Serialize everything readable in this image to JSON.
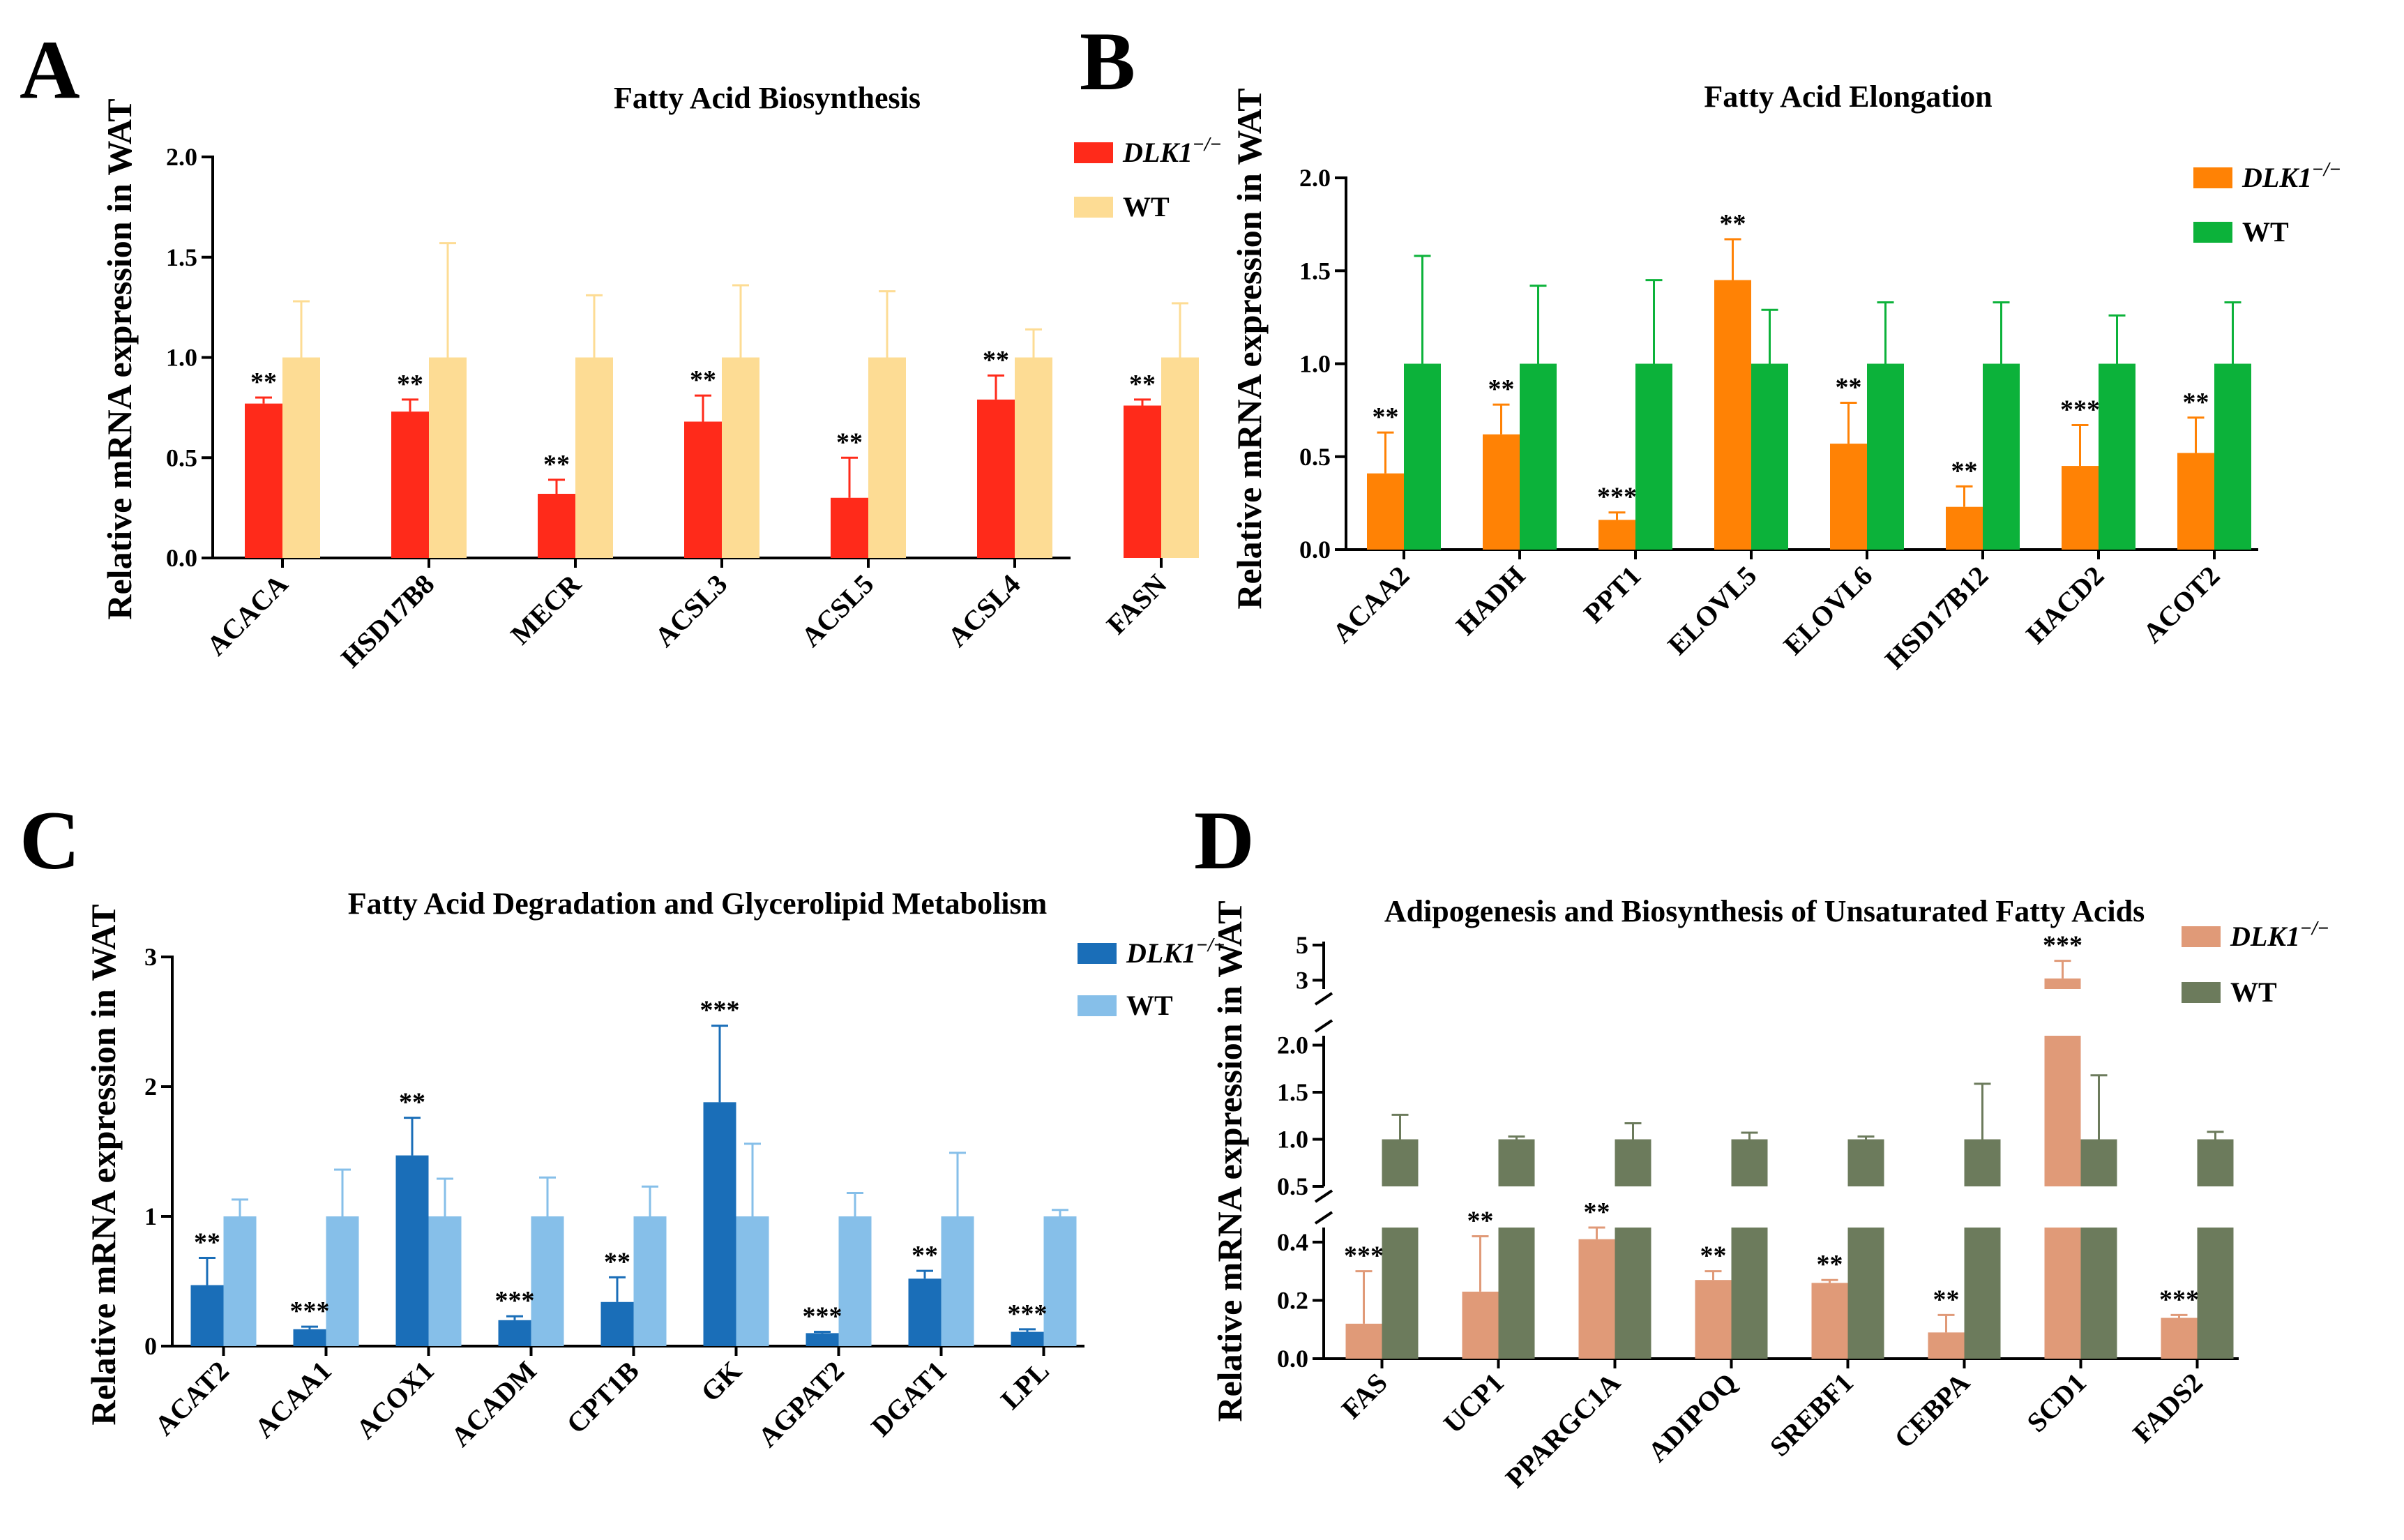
{
  "chart_data": [
    {
      "panel": "A",
      "type": "bar",
      "title": "Fatty Acid Biosynthesis",
      "ylabel": "Relative mRNA expression in WAT",
      "ylim": [
        0,
        2.0
      ],
      "yticks": [
        "0.0",
        "0.5",
        "1.0",
        "1.5",
        "2.0"
      ],
      "categories": [
        "ACACA",
        "HSD17B8",
        "MECR",
        "ACSL3",
        "ACSL5",
        "ACSL4",
        "FASN"
      ],
      "series": [
        {
          "name": "DLK1",
          "superscript": "−/−",
          "color": "#ff2a1a",
          "values": [
            0.77,
            0.73,
            0.32,
            0.68,
            0.3,
            0.79,
            0.76
          ],
          "errors": [
            0.03,
            0.06,
            0.07,
            0.13,
            0.2,
            0.12,
            0.03
          ],
          "significance": [
            "**",
            "**",
            "**",
            "**",
            "**",
            "**",
            "**"
          ]
        },
        {
          "name": "WT",
          "color": "#fddc94",
          "values": [
            1,
            1,
            1,
            1,
            1,
            1,
            1
          ],
          "errors": [
            0.28,
            0.57,
            0.31,
            0.36,
            0.33,
            0.14,
            0.27
          ]
        }
      ]
    },
    {
      "panel": "B",
      "type": "bar",
      "title": "Fatty Acid Elongation",
      "ylabel": "Relative mRNA expression in WAT",
      "ylim": [
        0,
        2.0
      ],
      "yticks": [
        "0.0",
        "0.5",
        "1.0",
        "1.5",
        "2.0"
      ],
      "categories": [
        "ACAA2",
        "HADH",
        "PPT1",
        "ELOVL5",
        "ELOVL6",
        "HSD17B12",
        "HACD2",
        "ACOT2"
      ],
      "series": [
        {
          "name": "DLK1",
          "superscript": "−/−",
          "color": "#ff8205",
          "values": [
            0.41,
            0.62,
            0.16,
            1.45,
            0.57,
            0.23,
            0.45,
            0.52
          ],
          "errors": [
            0.22,
            0.16,
            0.04,
            0.22,
            0.22,
            0.11,
            0.22,
            0.19
          ],
          "significance": [
            "**",
            "**",
            "***",
            "**",
            "**",
            "**",
            "***",
            "**"
          ]
        },
        {
          "name": "WT",
          "color": "#0cb23a",
          "values": [
            1,
            1,
            1,
            1,
            1,
            1,
            1,
            1
          ],
          "errors": [
            0.58,
            0.42,
            0.45,
            0.29,
            0.33,
            0.33,
            0.26,
            0.33
          ]
        }
      ]
    },
    {
      "panel": "C",
      "type": "bar",
      "title": "Fatty Acid Degradation and Glycerolipid Metabolism",
      "ylabel": "Relative mRNA expression in WAT",
      "ylim": [
        0,
        3
      ],
      "yticks": [
        "0",
        "1",
        "2",
        "3"
      ],
      "categories": [
        "ACAT2",
        "ACAA1",
        "ACOX1",
        "ACADM",
        "CPT1B",
        "GK",
        "AGPAT2",
        "DGAT1",
        "LPL"
      ],
      "series": [
        {
          "name": "DLK1",
          "superscript": "−/−",
          "color": "#1a6eb8",
          "values": [
            0.47,
            0.13,
            1.47,
            0.2,
            0.34,
            1.88,
            0.1,
            0.52,
            0.11
          ],
          "errors": [
            0.21,
            0.02,
            0.29,
            0.03,
            0.19,
            0.59,
            0.01,
            0.06,
            0.02
          ],
          "significance": [
            "**",
            "***",
            "**",
            "***",
            "**",
            "***",
            "***",
            "**",
            "***"
          ]
        },
        {
          "name": "WT",
          "color": "#86bfe9",
          "values": [
            1,
            1,
            1,
            1,
            1,
            1,
            1,
            1,
            1
          ],
          "errors": [
            0.13,
            0.36,
            0.29,
            0.3,
            0.23,
            0.56,
            0.18,
            0.49,
            0.05
          ]
        }
      ]
    },
    {
      "panel": "D",
      "type": "bar",
      "title": "Adipogenesis and Biosynthesis of Unsaturated Fatty Acids",
      "ylabel": "Relative mRNA expression in WAT",
      "y_axis_breaks": [
        [
          0.45,
          0.5
        ],
        [
          2.1,
          2.5
        ]
      ],
      "yticks": [
        "0.0",
        "0.2",
        "0.4",
        "0.5",
        "1.0",
        "1.5",
        "2.0",
        "3",
        "5"
      ],
      "categories": [
        "FAS",
        "UCP1",
        "PPARGC1A",
        "ADIPOQ",
        "SREBF1",
        "CEBPA",
        "SCD1",
        "FADS2"
      ],
      "series": [
        {
          "name": "DLK1",
          "superscript": "−/−",
          "color": "#e09a78",
          "values": [
            0.12,
            0.23,
            0.41,
            0.27,
            0.26,
            0.09,
            3.1,
            0.14
          ],
          "errors": [
            0.18,
            0.19,
            0.04,
            0.03,
            0.01,
            0.06,
            1.0,
            0.01
          ],
          "significance": [
            "***",
            "**",
            "**",
            "**",
            "**",
            "**",
            "***",
            "***"
          ]
        },
        {
          "name": "WT",
          "color": "#6c7b5c",
          "values": [
            1,
            1,
            1,
            1,
            1,
            1,
            1,
            1
          ],
          "errors": [
            0.26,
            0.03,
            0.17,
            0.07,
            0.03,
            0.59,
            0.68,
            0.08
          ]
        }
      ]
    }
  ]
}
